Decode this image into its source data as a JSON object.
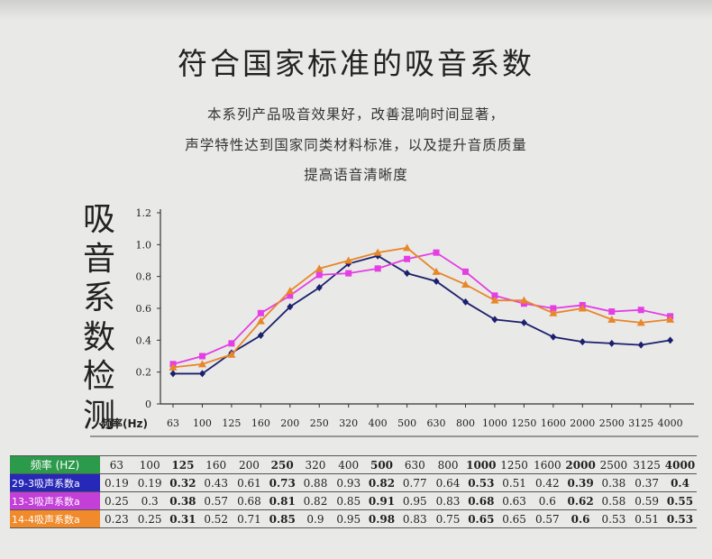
{
  "heading": {
    "title": "符合国家标准的吸音系数",
    "lines": [
      "本系列产品吸音效果好，改善混响时间显著，",
      "声学特性达到国家同类材料标准，以及提升音质质量",
      "提高语音清晰度"
    ]
  },
  "vertical_label": [
    "吸",
    "音",
    "系",
    "数",
    "检",
    "测"
  ],
  "chart_data": {
    "type": "line",
    "xlabel": "频率(Hz)",
    "categories": [
      "63",
      "100",
      "125",
      "160",
      "200",
      "250",
      "320",
      "400",
      "500",
      "630",
      "800",
      "1000",
      "1250",
      "1600",
      "2000",
      "2500",
      "3125",
      "4000"
    ],
    "ylim": [
      0,
      1.2
    ],
    "yticks": [
      "0",
      "0.2",
      "0.4",
      "0.6",
      "0.8",
      "1.0",
      "1.2"
    ],
    "grid": false,
    "series": [
      {
        "name": "29-3吸声系数a",
        "color": "#1c1f6e",
        "marker": "diamond",
        "values": [
          0.19,
          0.19,
          0.32,
          0.43,
          0.61,
          0.73,
          0.88,
          0.93,
          0.82,
          0.77,
          0.64,
          0.53,
          0.51,
          0.42,
          0.39,
          0.38,
          0.37,
          0.4
        ]
      },
      {
        "name": "13-3吸声系数a",
        "color": "#e43ee4",
        "marker": "square",
        "values": [
          0.25,
          0.3,
          0.38,
          0.57,
          0.68,
          0.81,
          0.82,
          0.85,
          0.91,
          0.95,
          0.83,
          0.68,
          0.63,
          0.6,
          0.62,
          0.58,
          0.59,
          0.55
        ]
      },
      {
        "name": "14-4吸声系数a",
        "color": "#e8862a",
        "marker": "triangle",
        "values": [
          0.23,
          0.25,
          0.31,
          0.52,
          0.71,
          0.85,
          0.9,
          0.95,
          0.98,
          0.83,
          0.75,
          0.65,
          0.65,
          0.57,
          0.6,
          0.53,
          0.51,
          0.53
        ]
      }
    ]
  },
  "table": {
    "header_label": "频率 (HZ)",
    "header_color": "#2b9a4a",
    "frequencies": [
      "63",
      "100",
      "125",
      "160",
      "200",
      "250",
      "320",
      "400",
      "500",
      "630",
      "800",
      "1000",
      "1250",
      "1600",
      "2000",
      "2500",
      "3125",
      "4000"
    ],
    "rows": [
      {
        "label": "29-3吸声系数a",
        "color": "#2828b8",
        "values": [
          "0.19",
          "0.19",
          "0.32",
          "0.43",
          "0.61",
          "0.73",
          "0.88",
          "0.93",
          "0.82",
          "0.77",
          "0.64",
          "0.53",
          "0.51",
          "0.42",
          "0.39",
          "0.38",
          "0.37",
          "0.4"
        ]
      },
      {
        "label": "13-3吸声系数a",
        "color": "#c43ed8",
        "values": [
          "0.25",
          "0.3",
          "0.38",
          "0.57",
          "0.68",
          "0.81",
          "0.82",
          "0.85",
          "0.91",
          "0.95",
          "0.83",
          "0.68",
          "0.63",
          "0.6",
          "0.62",
          "0.58",
          "0.59",
          "0.55"
        ]
      },
      {
        "label": "14-4吸声系数a",
        "color": "#f08a2a",
        "values": [
          "0.23",
          "0.25",
          "0.31",
          "0.52",
          "0.71",
          "0.85",
          "0.9",
          "0.95",
          "0.98",
          "0.83",
          "0.75",
          "0.65",
          "0.65",
          "0.57",
          "0.6",
          "0.53",
          "0.51",
          "0.53"
        ]
      }
    ]
  }
}
